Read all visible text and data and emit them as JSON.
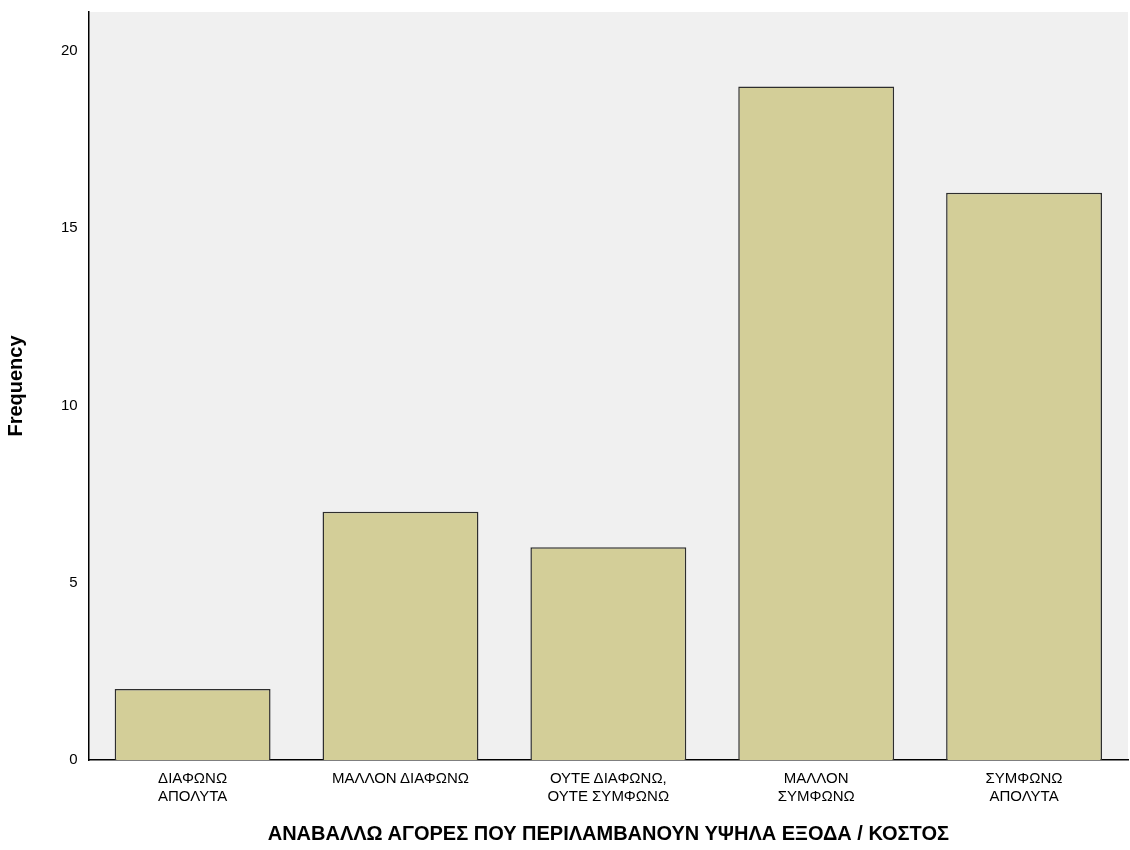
{
  "chart_data": {
    "type": "bar",
    "xlabel": "ΑΝΑΒΑΛΛΩ ΑΓΟΡΕΣ ΠΟΥ ΠΕΡΙΛΑΜΒΑΝΟΥΝ ΥΨΗΛΑ ΕΞΟΔΑ / ΚΟΣΤΟΣ",
    "ylabel": "Frequency",
    "categories": [
      "ΔΙΑΦΩΝΩ\nΑΠΟΛΥΤΑ",
      "ΜΑΛΛΟΝ ΔΙΑΦΩΝΩ",
      "ΟΥΤΕ ΔΙΑΦΩΝΩ,\nΟΥΤΕ ΣΥΜΦΩΝΩ",
      "ΜΑΛΛΟΝ\nΣΥΜΦΩΝΩ",
      "ΣΥΜΦΩΝΩ\nΑΠΟΛΥΤΑ"
    ],
    "values": [
      2,
      7,
      6,
      19,
      16
    ],
    "color": "#d3ce98",
    "ylim": [
      0,
      21.1
    ],
    "yticks": [
      0,
      5,
      10,
      15,
      20
    ],
    "grid": false,
    "legend": false
  }
}
